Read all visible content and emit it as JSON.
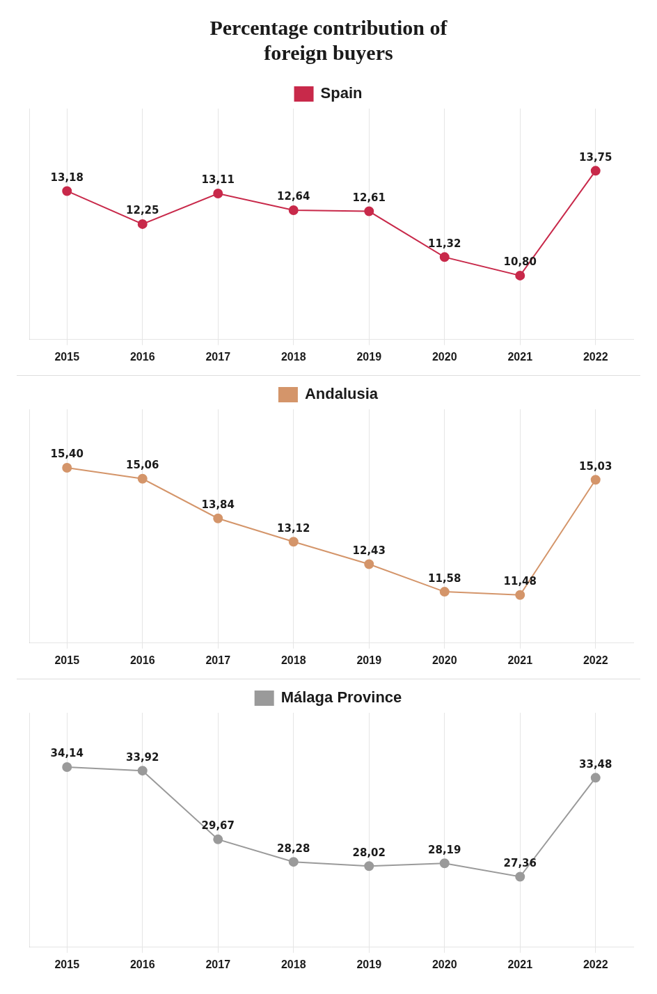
{
  "chart_data": [
    {
      "type": "line",
      "title": [
        "Percentage contribution of",
        "foreign buyers"
      ],
      "categories": [
        "2015",
        "2016",
        "2017",
        "2018",
        "2019",
        "2020",
        "2021",
        "2022"
      ],
      "series": [
        {
          "name": "Spain",
          "color": "#c8294a",
          "marker": "circle",
          "values": [
            13.18,
            12.25,
            13.11,
            12.64,
            12.61,
            11.32,
            10.8,
            13.75
          ],
          "value_labels": [
            "13,18",
            "12,25",
            "13,11",
            "12,64",
            "12,61",
            "11,32",
            "10,80",
            "13,75"
          ]
        }
      ],
      "ylim": [
        9.0,
        15.5
      ],
      "tick_labels": "x",
      "grid": "x",
      "legend": "top",
      "data_labels": true
    },
    {
      "type": "line",
      "categories": [
        "2015",
        "2016",
        "2017",
        "2018",
        "2019",
        "2020",
        "2021",
        "2022"
      ],
      "series": [
        {
          "name": "Andalusia",
          "color": "#d4956a",
          "marker": "circle",
          "values": [
            15.4,
            15.06,
            13.84,
            13.12,
            12.43,
            11.58,
            11.48,
            15.03
          ],
          "value_labels": [
            "15,40",
            "15,06",
            "13,84",
            "13,12",
            "12,43",
            "11,58",
            "11,48",
            "15,03"
          ]
        }
      ],
      "ylim": [
        10.0,
        17.2
      ],
      "tick_labels": "x",
      "grid": "x",
      "legend": "top",
      "data_labels": true
    },
    {
      "type": "line",
      "categories": [
        "2015",
        "2016",
        "2017",
        "2018",
        "2019",
        "2020",
        "2021",
        "2022"
      ],
      "series": [
        {
          "name": "Málaga Province",
          "color": "#9a9a9a",
          "marker": "circle",
          "values": [
            34.14,
            33.92,
            29.67,
            28.28,
            28.02,
            28.19,
            27.36,
            33.48
          ],
          "value_labels": [
            "34,14",
            "33,92",
            "29,67",
            "28,28",
            "28,02",
            "28,19",
            "27,36",
            "33,48"
          ]
        }
      ],
      "ylim": [
        23.0,
        37.5
      ],
      "tick_labels": "x",
      "grid": "x",
      "legend": "top",
      "data_labels": true
    }
  ]
}
